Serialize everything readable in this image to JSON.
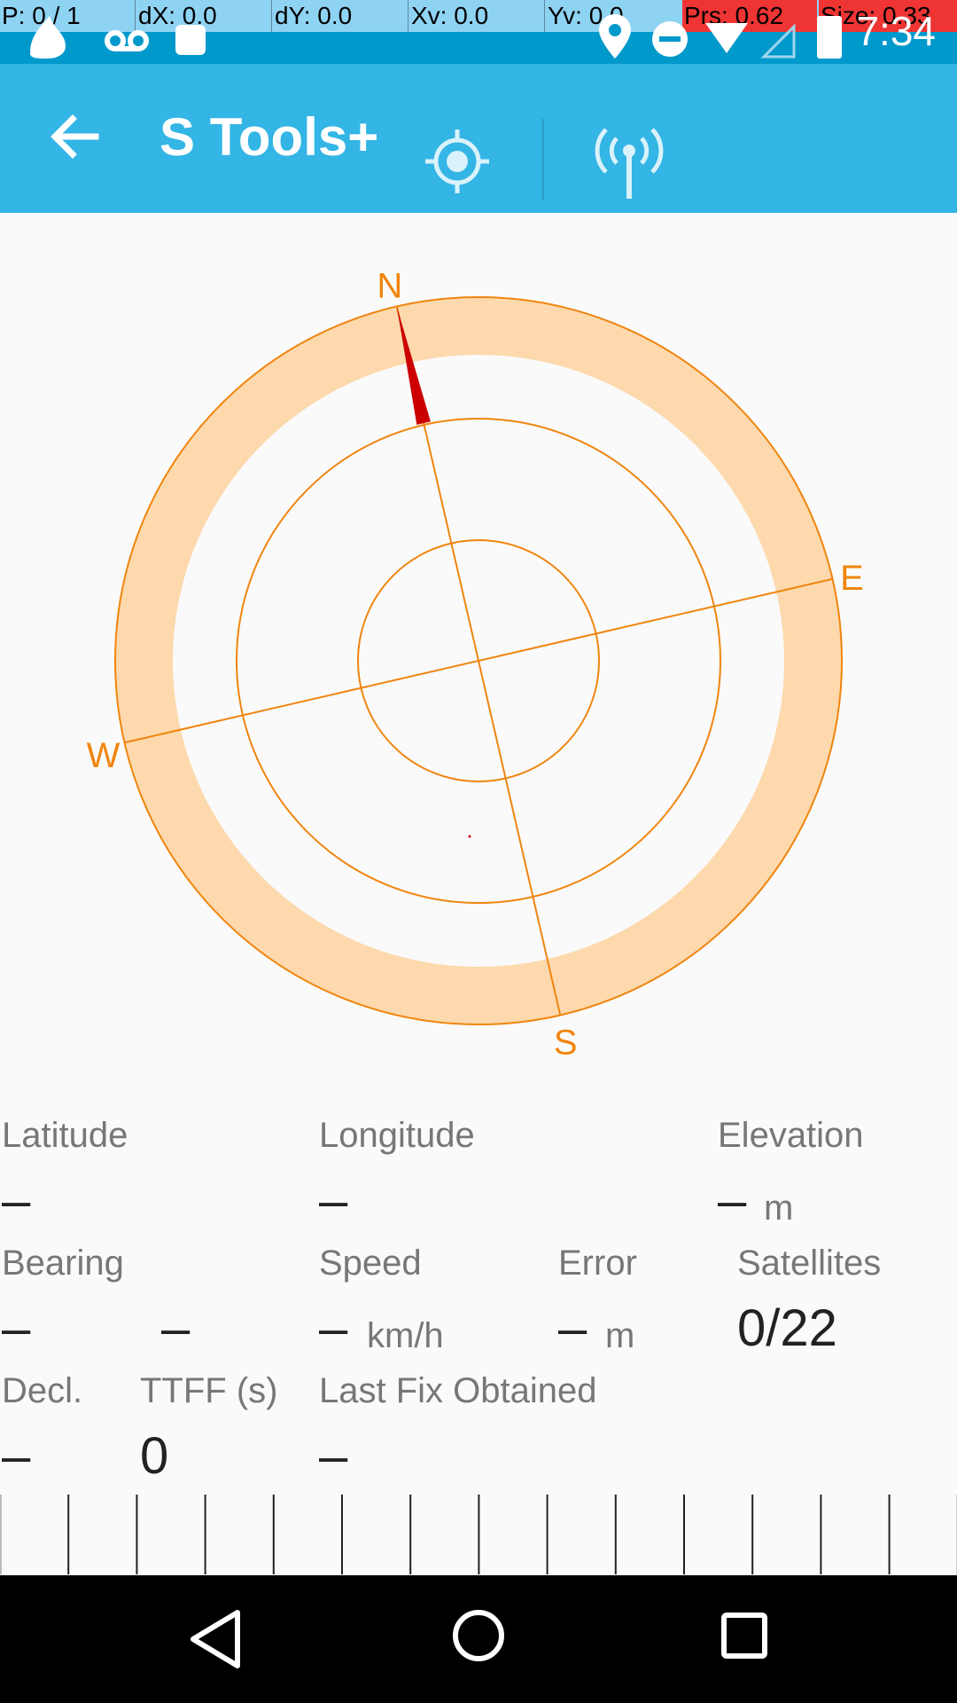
{
  "overlay": {
    "pointer": "P: 0 / 1",
    "dx": "dX: 0.0",
    "dy": "dY: 0.0",
    "xv": "Xv: 0.0",
    "yv": "Yv: 0.0",
    "prs": "Prs: 0.62",
    "size": "Size: 0.33"
  },
  "status_bar": {
    "time": "7:34"
  },
  "app_bar": {
    "title": "S Tools+",
    "back_icon": "arrow-left",
    "gps_icon": "crosshair-gps",
    "signal_icon": "antenna-signal"
  },
  "compass": {
    "north": "N",
    "east": "E",
    "south": "S",
    "west": "W",
    "accent": "#f0850f",
    "ring_fill": "#fdd9ad",
    "needle_color": "#cc0000"
  },
  "info": {
    "latitude_label": "Latitude",
    "latitude_value": "–",
    "longitude_label": "Longitude",
    "longitude_value": "–",
    "elevation_label": "Elevation",
    "elevation_value": "–",
    "elevation_unit": "m",
    "bearing_label": "Bearing",
    "bearing_value": "–",
    "bearing_value2": "–",
    "speed_label": "Speed",
    "speed_value": "–",
    "speed_unit": "km/h",
    "error_label": "Error",
    "error_value": "–",
    "error_unit": "m",
    "satellites_label": "Satellites",
    "satellites_value": "0/22",
    "decl_label": "Decl.",
    "decl_value": "–",
    "ttff_label": "TTFF (s)",
    "ttff_value": "0",
    "lastfix_label": "Last Fix Obtained",
    "lastfix_value": "–"
  },
  "nav": {
    "back_icon": "triangle-back",
    "home_icon": "circle-home",
    "recents_icon": "square-recents"
  }
}
